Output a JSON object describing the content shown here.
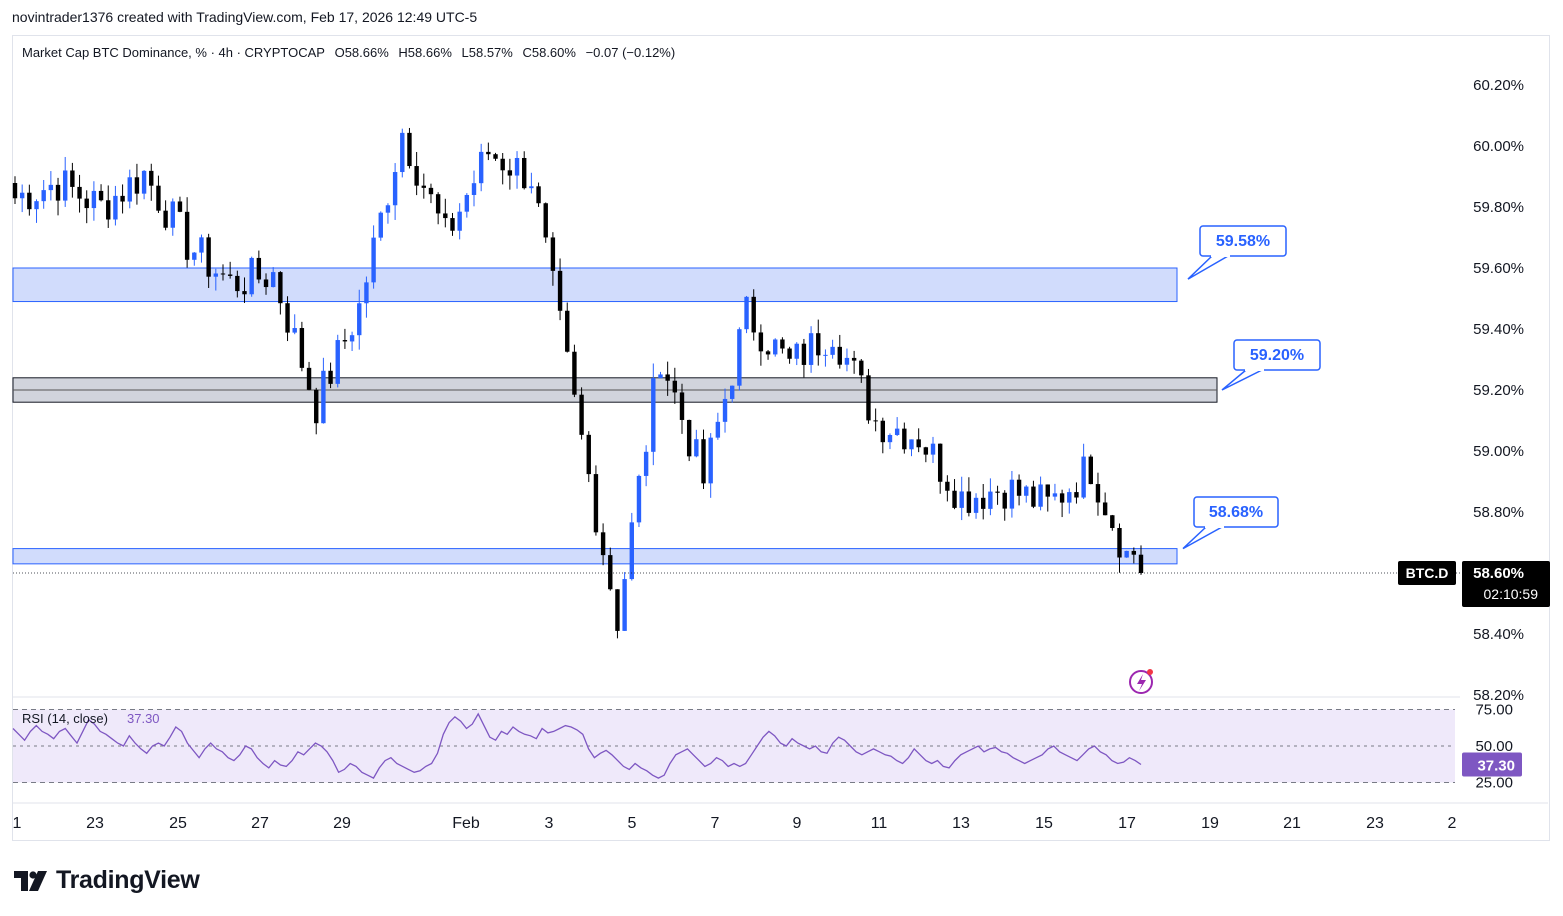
{
  "header": {
    "attribution": "novintrader1376 created with TradingView.com, Feb 17, 2026 12:49 UTC-5"
  },
  "legend": {
    "symbol": "Market Cap BTC Dominance, % · 4h · CRYPTOCAP",
    "open": "O58.66%",
    "high": "H58.66%",
    "low": "L58.57%",
    "close": "C58.60%",
    "change": "−0.07 (−0.12%)"
  },
  "colors": {
    "bull": "#2962ff",
    "bear": "#000000",
    "zone_blue_fill": "#d1dcfc",
    "zone_blue_stroke": "#2962ff",
    "zone_gray_fill": "#d1d4dc",
    "zone_gray_stroke": "#131722",
    "rsi_line": "#7e57c2",
    "rsi_band": "#efe9fa"
  },
  "chart_data": [
    {
      "type": "candlestick",
      "symbol": "BTC.D",
      "timeframe": "4h",
      "x_tick_labels": [
        "1",
        "23",
        "25",
        "27",
        "29",
        "Feb",
        "3",
        "5",
        "7",
        "9",
        "11",
        "13",
        "15",
        "17",
        "19",
        "21",
        "23",
        "2"
      ],
      "y_tick_labels": [
        "60.20%",
        "60.00%",
        "59.80%",
        "59.60%",
        "59.40%",
        "59.20%",
        "59.00%",
        "58.80%",
        "58.40%",
        "58.20%"
      ],
      "ylim": [
        58.2,
        60.25
      ],
      "zones": [
        {
          "name": "resistance-zone",
          "top": 59.6,
          "bottom": 59.49,
          "style": "blue"
        },
        {
          "name": "mid-zone",
          "top": 59.24,
          "bottom": 59.16,
          "style": "gray"
        },
        {
          "name": "support-zone",
          "top": 58.68,
          "bottom": 58.63,
          "style": "blue"
        }
      ],
      "callouts": [
        {
          "label": "59.58%",
          "value": 59.58
        },
        {
          "label": "59.20%",
          "value": 59.2
        },
        {
          "label": "58.68%",
          "value": 58.68
        }
      ],
      "last_price": {
        "symbol_label": "BTC.D",
        "price_label": "58.60%",
        "countdown": "02:10:59",
        "value": 58.6
      },
      "key_levels": [
        {
          "date": "Jan 22",
          "close": 59.83
        },
        {
          "date": "Jan 23",
          "close": 59.88
        },
        {
          "date": "Jan 24",
          "close": 59.8
        },
        {
          "date": "Jan 25",
          "close": 59.91
        },
        {
          "date": "Jan 26",
          "close": 59.68
        },
        {
          "date": "Jan 27",
          "close": 59.55
        },
        {
          "date": "Jan 28",
          "close": 59.58
        },
        {
          "date": "Jan 29",
          "close": 59.15
        },
        {
          "date": "Jan 30",
          "close": 59.47
        },
        {
          "date": "Jan 31",
          "close": 60.05
        },
        {
          "date": "Feb 1",
          "close": 59.7
        },
        {
          "date": "Feb 2",
          "close": 59.98
        },
        {
          "date": "Feb 3",
          "close": 59.9
        },
        {
          "date": "Feb 4",
          "close": 59.15
        },
        {
          "date": "Feb 5",
          "close": 58.45
        },
        {
          "date": "Feb 6",
          "close": 59.32
        },
        {
          "date": "Feb 7",
          "close": 58.9
        },
        {
          "date": "Feb 8",
          "close": 59.45
        },
        {
          "date": "Feb 9",
          "close": 59.28
        },
        {
          "date": "Feb 10",
          "close": 59.4
        },
        {
          "date": "Feb 11",
          "close": 59.1
        },
        {
          "date": "Feb 12",
          "close": 59.05
        },
        {
          "date": "Feb 13",
          "close": 58.85
        },
        {
          "date": "Feb 14",
          "close": 58.88
        },
        {
          "date": "Feb 15",
          "close": 58.82
        },
        {
          "date": "Feb 16",
          "close": 58.95
        },
        {
          "date": "Feb 17",
          "close": 58.6
        }
      ]
    },
    {
      "type": "line",
      "name": "RSI (14, close)",
      "label": "RSI (14, close)",
      "current_value": "37.30",
      "y_tick_labels": [
        "75.00",
        "50.00",
        "25.00"
      ],
      "ylim": [
        22,
        77
      ],
      "band": [
        30,
        70
      ],
      "values": [
        62,
        58,
        54,
        60,
        64,
        60,
        58,
        55,
        60,
        62,
        57,
        52,
        60,
        68,
        65,
        60,
        58,
        55,
        52,
        50,
        57,
        52,
        48,
        45,
        50,
        52,
        50,
        56,
        63,
        60,
        52,
        47,
        42,
        48,
        52,
        48,
        46,
        42,
        40,
        44,
        50,
        48,
        42,
        38,
        35,
        40,
        37,
        36,
        40,
        46,
        44,
        48,
        52,
        50,
        46,
        40,
        32,
        34,
        38,
        36,
        32,
        30,
        28,
        35,
        40,
        42,
        38,
        36,
        34,
        32,
        33,
        36,
        38,
        45,
        58,
        66,
        70,
        67,
        62,
        65,
        72,
        64,
        56,
        54,
        60,
        58,
        63,
        60,
        58,
        57,
        55,
        62,
        59,
        60,
        62,
        64,
        63,
        61,
        58,
        48,
        42,
        45,
        47,
        44,
        40,
        36,
        34,
        38,
        35,
        33,
        30,
        28,
        30,
        38,
        44,
        46,
        48,
        44,
        40,
        36,
        38,
        42,
        40,
        36,
        38,
        36,
        38,
        44,
        50,
        56,
        60,
        57,
        52,
        50,
        55,
        52,
        50,
        48,
        50,
        46,
        45,
        52,
        56,
        54,
        50,
        46,
        44,
        46,
        48,
        46,
        44,
        43,
        40,
        38,
        42,
        48,
        44,
        40,
        38,
        40,
        36,
        35,
        40,
        44,
        46,
        48,
        50,
        46,
        48,
        49,
        46,
        45,
        42,
        40,
        38,
        40,
        42,
        44,
        48,
        50,
        46,
        44,
        42,
        40,
        44,
        48,
        50,
        46,
        44,
        40,
        38,
        39,
        42,
        40,
        37.3
      ]
    }
  ],
  "footer": {
    "brand": "TradingView"
  }
}
